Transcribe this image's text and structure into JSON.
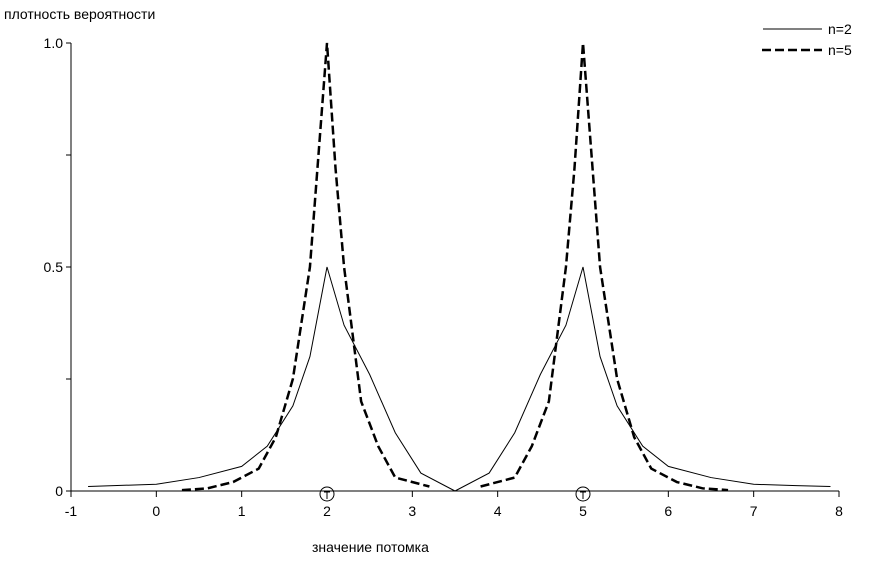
{
  "chart_data": {
    "type": "line",
    "title": "",
    "ylabel": "плотность вероятности",
    "xlabel": "значение потомка",
    "xlim": [
      -1,
      8
    ],
    "ylim": [
      0,
      1.0
    ],
    "x_ticks": [
      "-1",
      "0",
      "1",
      "2",
      "3",
      "4",
      "5",
      "6",
      "7",
      "8"
    ],
    "y_ticks": [
      0,
      0.25,
      0.5,
      0.75,
      1.0
    ],
    "y_tick_labels": [
      "0",
      "",
      "0.5",
      "",
      "1.0"
    ],
    "grid": false,
    "legend_position": "top-right",
    "parent_markers": [
      2,
      5
    ],
    "series": [
      {
        "name": "n=2",
        "style": "solid",
        "x": [
          -0.8,
          -0.5,
          0,
          0.5,
          1,
          1.3,
          1.6,
          1.8,
          1.95,
          2,
          2.2,
          2.5,
          2.8,
          3.1,
          3.5,
          3.9,
          4.2,
          4.5,
          4.8,
          5,
          5.05,
          5.2,
          5.4,
          5.7,
          6,
          6.5,
          7,
          7.5,
          7.9
        ],
        "y": [
          0.01,
          0.012,
          0.015,
          0.03,
          0.055,
          0.1,
          0.19,
          0.3,
          0.45,
          0.5,
          0.37,
          0.26,
          0.13,
          0.04,
          0,
          0.04,
          0.13,
          0.26,
          0.37,
          0.5,
          0.45,
          0.3,
          0.19,
          0.1,
          0.055,
          0.03,
          0.015,
          0.012,
          0.01
        ]
      },
      {
        "name": "n=5",
        "style": "dashed",
        "x": [
          0.3,
          0.6,
          0.9,
          1.2,
          1.4,
          1.6,
          1.8,
          1.9,
          2,
          2.1,
          2.2,
          2.4,
          2.6,
          2.8,
          3.2,
          3.8,
          4.2,
          4.4,
          4.6,
          4.8,
          4.9,
          5,
          5.1,
          5.2,
          5.4,
          5.6,
          5.8,
          6.1,
          6.4,
          6.7
        ],
        "y": [
          0.002,
          0.006,
          0.02,
          0.05,
          0.12,
          0.25,
          0.5,
          0.75,
          1.0,
          0.72,
          0.5,
          0.2,
          0.1,
          0.03,
          0.01,
          0.01,
          0.03,
          0.1,
          0.2,
          0.5,
          0.72,
          1.0,
          0.75,
          0.5,
          0.25,
          0.12,
          0.05,
          0.02,
          0.006,
          0.002
        ]
      }
    ]
  }
}
